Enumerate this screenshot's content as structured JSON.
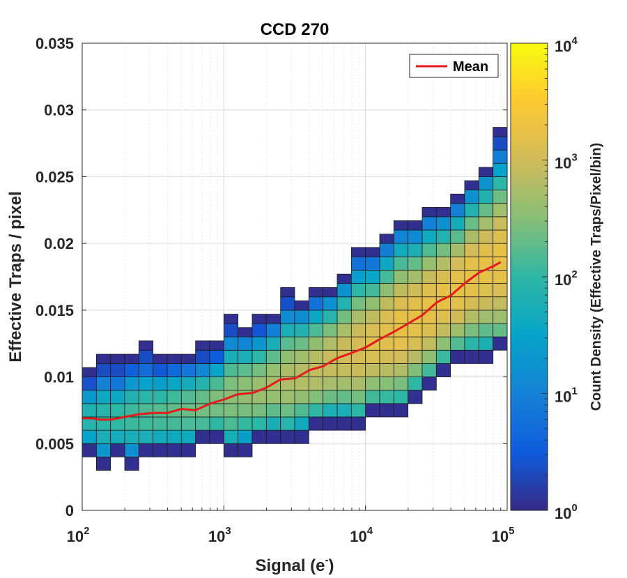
{
  "chart_data": {
    "type": "heatmap",
    "title": "CCD 270",
    "xlabel": "Signal (e",
    "xlabel_sup": "-",
    "xlabel_close": ")",
    "ylabel": "Effective Traps / pixel",
    "colorbar_label": "Count Density (Effective Traps/Pixel/bin)",
    "x_scale": "log",
    "xlim": [
      100,
      100000
    ],
    "ylim": [
      0,
      0.035
    ],
    "x_ticks": [
      {
        "base": "10",
        "exp": "2",
        "value": 100
      },
      {
        "base": "10",
        "exp": "3",
        "value": 1000
      },
      {
        "base": "10",
        "exp": "4",
        "value": 10000
      },
      {
        "base": "10",
        "exp": "5",
        "value": 100000
      }
    ],
    "y_ticks": [
      {
        "label": "0",
        "value": 0
      },
      {
        "label": "0.005",
        "value": 0.005
      },
      {
        "label": "0.01",
        "value": 0.01
      },
      {
        "label": "0.015",
        "value": 0.015
      },
      {
        "label": "0.02",
        "value": 0.02
      },
      {
        "label": "0.025",
        "value": 0.025
      },
      {
        "label": "0.03",
        "value": 0.03
      },
      {
        "label": "0.035",
        "value": 0.035
      }
    ],
    "colorbar_scale": "log",
    "colorbar_range": [
      1,
      10000
    ],
    "colorbar_ticks": [
      {
        "base": "10",
        "exp": "0",
        "value": 1
      },
      {
        "base": "10",
        "exp": "1",
        "value": 10
      },
      {
        "base": "10",
        "exp": "2",
        "value": 100
      },
      {
        "base": "10",
        "exp": "3",
        "value": 1000
      },
      {
        "base": "10",
        "exp": "4",
        "value": 10000
      }
    ],
    "bins": {
      "log10_x_start": 2.0,
      "log10_x_step": 0.1,
      "count": 30,
      "y_bin_height": 0.001,
      "columns": [
        {
          "y_lo": 0.004,
          "y_hi": 0.0107
        },
        {
          "y_lo": 0.003,
          "y_hi": 0.0117
        },
        {
          "y_lo": 0.004,
          "y_hi": 0.0117
        },
        {
          "y_lo": 0.003,
          "y_hi": 0.0117
        },
        {
          "y_lo": 0.004,
          "y_hi": 0.0127
        },
        {
          "y_lo": 0.004,
          "y_hi": 0.0117
        },
        {
          "y_lo": 0.004,
          "y_hi": 0.0117
        },
        {
          "y_lo": 0.004,
          "y_hi": 0.0117
        },
        {
          "y_lo": 0.005,
          "y_hi": 0.0127
        },
        {
          "y_lo": 0.005,
          "y_hi": 0.0127
        },
        {
          "y_lo": 0.004,
          "y_hi": 0.0147
        },
        {
          "y_lo": 0.004,
          "y_hi": 0.0137
        },
        {
          "y_lo": 0.005,
          "y_hi": 0.0147
        },
        {
          "y_lo": 0.005,
          "y_hi": 0.0147
        },
        {
          "y_lo": 0.005,
          "y_hi": 0.0167
        },
        {
          "y_lo": 0.005,
          "y_hi": 0.0157
        },
        {
          "y_lo": 0.006,
          "y_hi": 0.0167
        },
        {
          "y_lo": 0.006,
          "y_hi": 0.0167
        },
        {
          "y_lo": 0.006,
          "y_hi": 0.0177
        },
        {
          "y_lo": 0.006,
          "y_hi": 0.0197
        },
        {
          "y_lo": 0.007,
          "y_hi": 0.0197
        },
        {
          "y_lo": 0.007,
          "y_hi": 0.0207
        },
        {
          "y_lo": 0.007,
          "y_hi": 0.0217
        },
        {
          "y_lo": 0.008,
          "y_hi": 0.0217
        },
        {
          "y_lo": 0.009,
          "y_hi": 0.0227
        },
        {
          "y_lo": 0.01,
          "y_hi": 0.0227
        },
        {
          "y_lo": 0.011,
          "y_hi": 0.0237
        },
        {
          "y_lo": 0.011,
          "y_hi": 0.0247
        },
        {
          "y_lo": 0.011,
          "y_hi": 0.0257
        },
        {
          "y_lo": 0.012,
          "y_hi": 0.0287
        }
      ]
    },
    "series": [
      {
        "name": "Mean",
        "color": "#e41a1c",
        "x": [
          100,
          115,
          135,
          160,
          200,
          250,
          320,
          400,
          500,
          630,
          800,
          1000,
          1250,
          1600,
          2000,
          2500,
          3200,
          4000,
          5000,
          6300,
          8000,
          10000,
          12500,
          16000,
          20000,
          25000,
          32000,
          40000,
          50000,
          63000,
          80000,
          90000
        ],
        "y": [
          0.0069,
          0.0069,
          0.0068,
          0.0068,
          0.007,
          0.0072,
          0.0073,
          0.0073,
          0.0076,
          0.0075,
          0.008,
          0.0083,
          0.0087,
          0.0088,
          0.0092,
          0.0098,
          0.0099,
          0.0105,
          0.0108,
          0.0114,
          0.0118,
          0.0122,
          0.0128,
          0.0134,
          0.014,
          0.0146,
          0.0156,
          0.0161,
          0.017,
          0.0178,
          0.0183,
          0.0186
        ]
      }
    ],
    "legend": {
      "position": "top-right",
      "entries": [
        "Mean"
      ]
    }
  }
}
